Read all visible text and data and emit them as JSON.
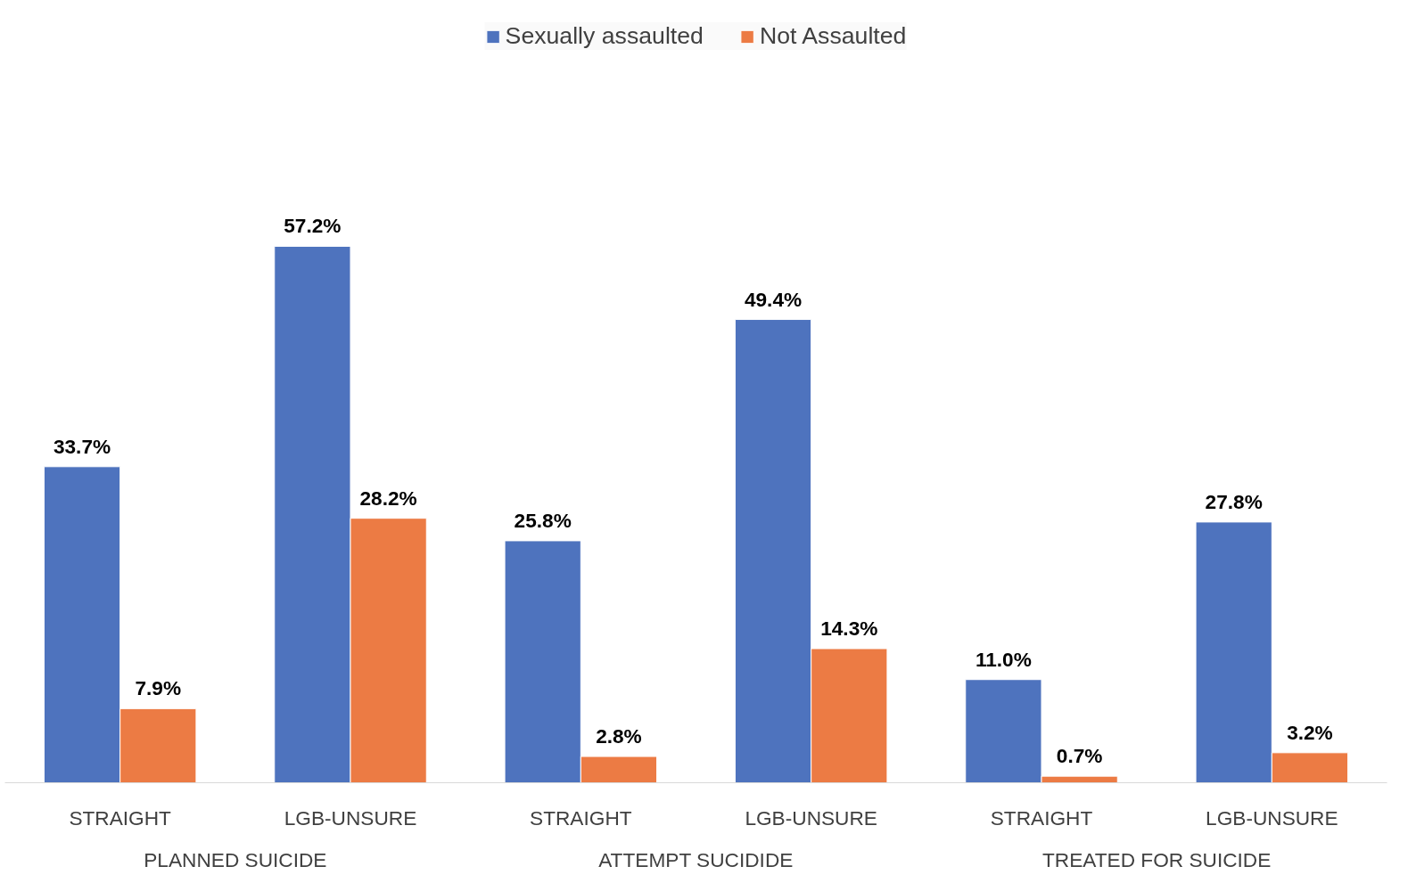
{
  "chart_data": {
    "type": "bar",
    "categories": [
      "STRAIGHT",
      "LGB-UNSURE",
      "STRAIGHT",
      "LGB-UNSURE",
      "STRAIGHT",
      "LGB-UNSURE"
    ],
    "series": [
      {
        "name": "Sexually assaulted",
        "color": "#4e73be",
        "values": [
          33.7,
          57.2,
          25.8,
          49.4,
          11.0,
          27.8
        ],
        "value_labels": [
          "33.7%",
          "57.2%",
          "25.8%",
          "49.4%",
          "11.0%",
          "27.8%"
        ]
      },
      {
        "name": "Not Assaulted",
        "color": "#ec7b44",
        "values": [
          7.9,
          28.2,
          2.8,
          14.3,
          0.7,
          3.2
        ],
        "value_labels": [
          "7.9%",
          "28.2%",
          "2.8%",
          "14.3%",
          "0.7%",
          "3.2%"
        ]
      }
    ],
    "annotations": [
      "PLANNED SUICIDE",
      "ATTEMPT SUCIDIDE",
      "TREATED FOR SUICIDE"
    ],
    "legend": "top"
  }
}
